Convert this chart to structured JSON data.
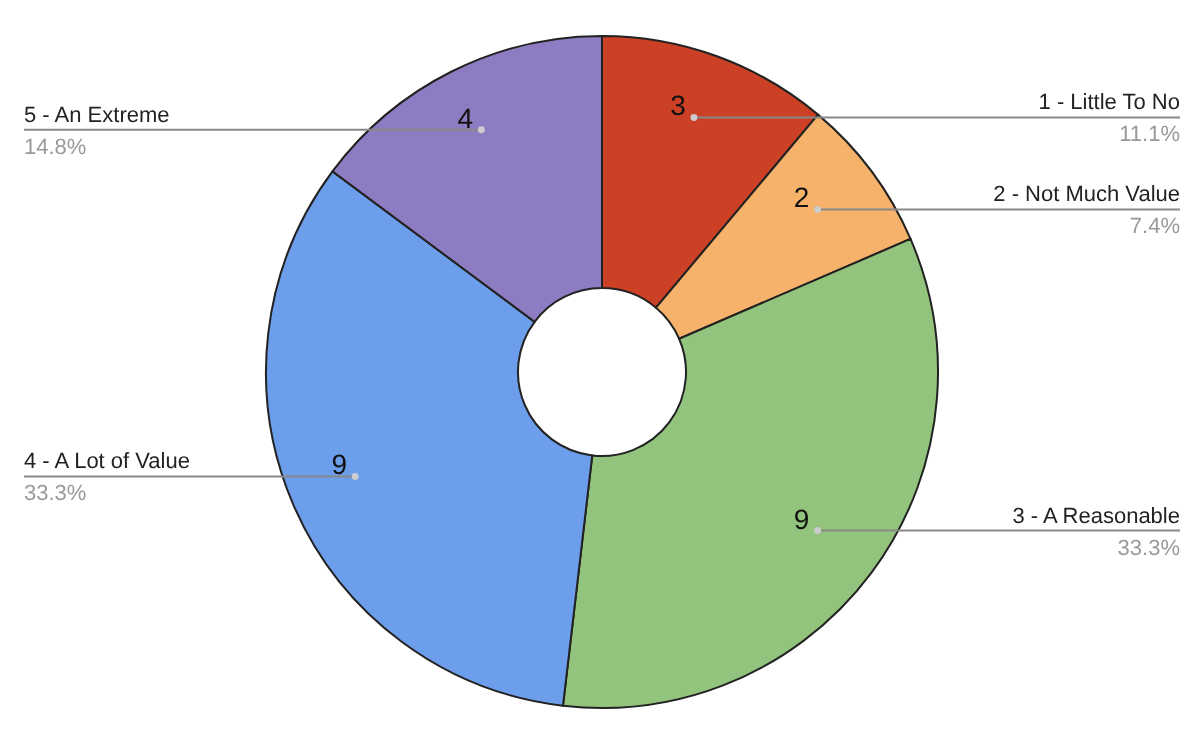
{
  "chart_data": {
    "type": "donut",
    "categories": [
      "1 - Little To No",
      "2 - Not Much Value",
      "3 - A Reasonable",
      "4 - A Lot of Value",
      "5 - An Extreme"
    ],
    "values": [
      3,
      2,
      9,
      9,
      4
    ],
    "colors": [
      "#cc4125",
      "#f6b26b",
      "#93c47d",
      "#6d9eeb",
      "#8e7cc3"
    ],
    "data_labels": true,
    "annotations": [
      "11.1%",
      "7.4%",
      "33.3%",
      "33.3%",
      "14.8%"
    ]
  }
}
